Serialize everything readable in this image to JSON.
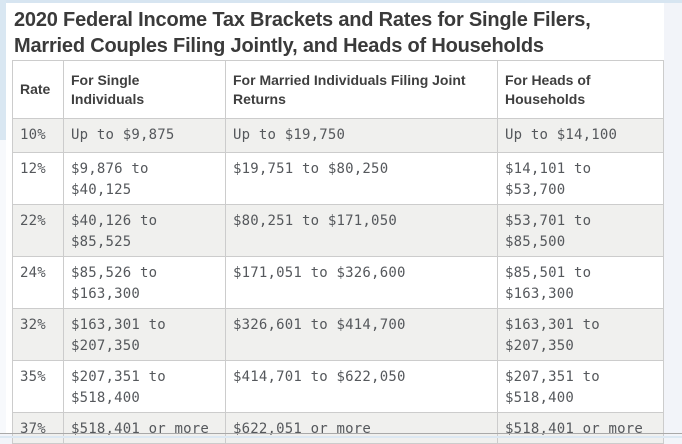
{
  "title": "2020 Federal Income Tax Brackets and Rates for Single Filers,\nMarried Couples Filing Jointly, and Heads of Households",
  "table": {
    "headers": {
      "rate": "Rate",
      "single": "For Single\nIndividuals",
      "married": "For Married Individuals Filing Joint\nReturns",
      "heads": "For Heads of\nHouseholds"
    },
    "rows": [
      {
        "rate": "10%",
        "single": "Up to $9,875",
        "married": "Up to $19,750",
        "heads": "Up to $14,100"
      },
      {
        "rate": "12%",
        "single": "$9,876 to\n$40,125",
        "married": "$19,751 to $80,250",
        "heads": "$14,101 to\n$53,700"
      },
      {
        "rate": "22%",
        "single": "$40,126 to\n$85,525",
        "married": "$80,251 to $171,050",
        "heads": "$53,701 to\n$85,500"
      },
      {
        "rate": "24%",
        "single": "$85,526 to\n$163,300",
        "married": "$171,051 to $326,600",
        "heads": "$85,501 to\n$163,300"
      },
      {
        "rate": "32%",
        "single": "$163,301 to\n$207,350",
        "married": "$326,601 to $414,700",
        "heads": "$163,301 to\n$207,350"
      },
      {
        "rate": "35%",
        "single": "$207,351 to\n$518,400",
        "married": "$414,701 to $622,050",
        "heads": "$207,351 to\n$518,400"
      },
      {
        "rate": "37%",
        "single": "$518,401 or more",
        "married": "$622,051 or more",
        "heads": "$518,401 or more"
      }
    ]
  },
  "colors": {
    "page_bg": "#f2f4f9",
    "edge_blue": "#d7e5f1",
    "card_bg": "#ffffff",
    "row_stripe": "#f0f0ee",
    "cell_border": "#cccccc",
    "title_text": "#3a3a3a",
    "header_text": "#3f3f3f",
    "body_text": "#55585c",
    "bottom_rule": "#a9a9a9"
  }
}
